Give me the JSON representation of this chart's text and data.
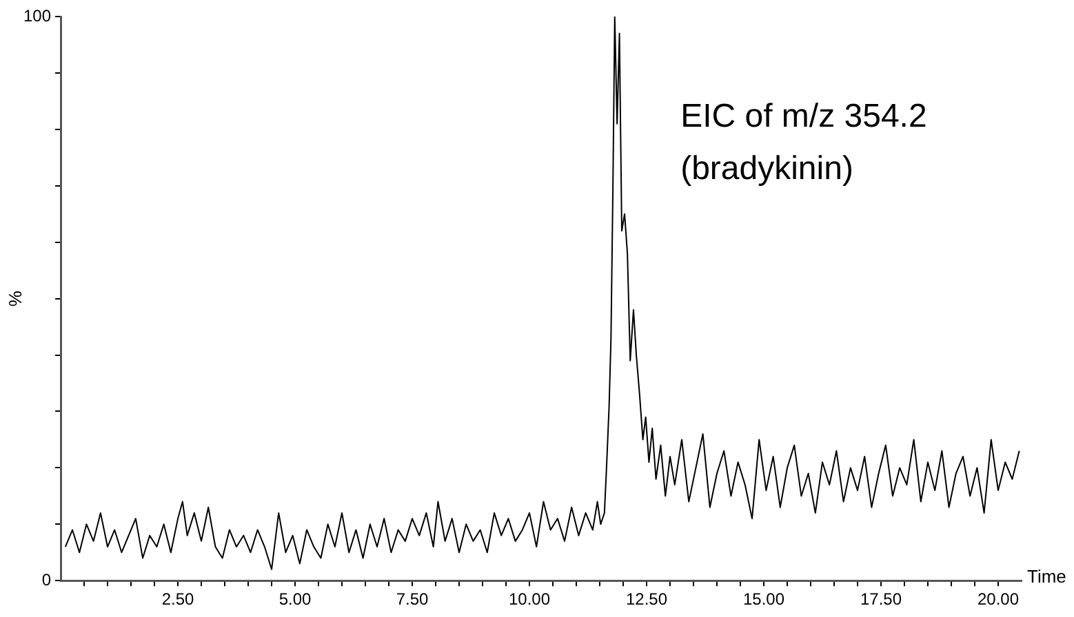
{
  "chart_data": {
    "type": "line",
    "xlabel": "Time",
    "ylabel": "%",
    "annotations": [
      "EIC of m/z 354.2",
      "(bradykinin)"
    ],
    "xlim": [
      0,
      20.5
    ],
    "ylim": [
      0,
      100
    ],
    "xticks": [
      {
        "value": 0.5,
        "label": null
      },
      {
        "value": 1,
        "label": null
      },
      {
        "value": 1.5,
        "label": null
      },
      {
        "value": 2,
        "label": null
      },
      {
        "value": 2.5,
        "label": "2.50"
      },
      {
        "value": 3,
        "label": null
      },
      {
        "value": 3.5,
        "label": null
      },
      {
        "value": 4,
        "label": null
      },
      {
        "value": 4.5,
        "label": null
      },
      {
        "value": 5,
        "label": "5.00"
      },
      {
        "value": 5.5,
        "label": null
      },
      {
        "value": 6,
        "label": null
      },
      {
        "value": 6.5,
        "label": null
      },
      {
        "value": 7,
        "label": null
      },
      {
        "value": 7.5,
        "label": "7.50"
      },
      {
        "value": 8,
        "label": null
      },
      {
        "value": 8.5,
        "label": null
      },
      {
        "value": 9,
        "label": null
      },
      {
        "value": 9.5,
        "label": null
      },
      {
        "value": 10,
        "label": "10.00"
      },
      {
        "value": 10.5,
        "label": null
      },
      {
        "value": 11,
        "label": null
      },
      {
        "value": 11.5,
        "label": null
      },
      {
        "value": 12,
        "label": null
      },
      {
        "value": 12.5,
        "label": "12.50"
      },
      {
        "value": 13,
        "label": null
      },
      {
        "value": 13.5,
        "label": null
      },
      {
        "value": 14,
        "label": null
      },
      {
        "value": 14.5,
        "label": null
      },
      {
        "value": 15,
        "label": "15.00"
      },
      {
        "value": 15.5,
        "label": null
      },
      {
        "value": 16,
        "label": null
      },
      {
        "value": 16.5,
        "label": null
      },
      {
        "value": 17,
        "label": null
      },
      {
        "value": 17.5,
        "label": "17.50"
      },
      {
        "value": 18,
        "label": null
      },
      {
        "value": 18.5,
        "label": null
      },
      {
        "value": 19,
        "label": null
      },
      {
        "value": 19.5,
        "label": null
      },
      {
        "value": 20,
        "label": "20.00"
      }
    ],
    "yticks": [
      0,
      {
        "value": 10,
        "label": null
      },
      {
        "value": 20,
        "label": null
      },
      {
        "value": 30,
        "label": null
      },
      {
        "value": 40,
        "label": null
      },
      {
        "value": 50,
        "label": null
      },
      {
        "value": 60,
        "label": null
      },
      {
        "value": 70,
        "label": null
      },
      {
        "value": 80,
        "label": null
      },
      {
        "value": 90,
        "label": null
      },
      100
    ],
    "grid": false,
    "legend": false,
    "marker": "none",
    "line_style": "solid",
    "series": [
      {
        "color": "#000000",
        "x": [
          0.1,
          0.25,
          0.4,
          0.55,
          0.7,
          0.85,
          1.0,
          1.15,
          1.3,
          1.45,
          1.6,
          1.75,
          1.9,
          2.05,
          2.2,
          2.35,
          2.5,
          2.6,
          2.7,
          2.85,
          3.0,
          3.15,
          3.3,
          3.45,
          3.6,
          3.75,
          3.9,
          4.05,
          4.2,
          4.35,
          4.5,
          4.65,
          4.8,
          4.95,
          5.1,
          5.25,
          5.4,
          5.55,
          5.7,
          5.85,
          6.0,
          6.15,
          6.3,
          6.45,
          6.6,
          6.75,
          6.9,
          7.05,
          7.2,
          7.35,
          7.5,
          7.65,
          7.8,
          7.95,
          8.05,
          8.2,
          8.35,
          8.5,
          8.65,
          8.8,
          8.95,
          9.1,
          9.25,
          9.4,
          9.55,
          9.7,
          9.85,
          10.0,
          10.15,
          10.3,
          10.45,
          10.6,
          10.75,
          10.9,
          11.05,
          11.2,
          11.35,
          11.45,
          11.52,
          11.6,
          11.65,
          11.7,
          11.74,
          11.78,
          11.82,
          11.87,
          11.92,
          11.97,
          12.03,
          12.09,
          12.15,
          12.22,
          12.28,
          12.35,
          12.42,
          12.48,
          12.55,
          12.62,
          12.7,
          12.8,
          12.9,
          13.0,
          13.1,
          13.25,
          13.4,
          13.55,
          13.7,
          13.85,
          14.0,
          14.15,
          14.3,
          14.45,
          14.6,
          14.75,
          14.9,
          15.05,
          15.2,
          15.35,
          15.5,
          15.65,
          15.8,
          15.95,
          16.1,
          16.25,
          16.4,
          16.55,
          16.7,
          16.85,
          17.0,
          17.15,
          17.3,
          17.45,
          17.6,
          17.75,
          17.9,
          18.05,
          18.2,
          18.35,
          18.5,
          18.65,
          18.8,
          18.95,
          19.1,
          19.25,
          19.4,
          19.55,
          19.7,
          19.85,
          20.0,
          20.15,
          20.3,
          20.45
        ],
        "values": [
          6,
          9,
          5,
          10,
          7,
          12,
          6,
          9,
          5,
          8,
          11,
          4,
          8,
          6,
          10,
          5,
          11,
          14,
          8,
          12,
          7,
          13,
          6,
          4,
          9,
          6,
          8,
          5,
          9,
          6,
          2,
          12,
          5,
          8,
          3,
          9,
          6,
          4,
          10,
          6,
          12,
          5,
          9,
          4,
          10,
          6,
          11,
          5,
          9,
          7,
          11,
          8,
          12,
          6,
          14,
          7,
          11,
          5,
          10,
          7,
          9,
          5,
          12,
          8,
          11,
          7,
          9,
          12,
          6,
          14,
          9,
          11,
          7,
          13,
          8,
          12,
          9,
          14,
          10,
          12,
          21,
          31,
          43,
          69,
          100,
          81,
          97,
          62,
          65,
          58,
          39,
          48,
          40,
          33,
          25,
          29,
          21,
          27,
          18,
          24,
          15,
          22,
          17,
          25,
          14,
          20,
          26,
          13,
          19,
          23,
          15,
          21,
          17,
          11,
          25,
          16,
          22,
          13,
          20,
          24,
          15,
          19,
          12,
          21,
          17,
          23,
          14,
          20,
          16,
          22,
          13,
          19,
          24,
          15,
          20,
          17,
          25,
          14,
          21,
          16,
          23,
          13,
          19,
          22,
          15,
          20,
          12,
          25,
          16,
          21,
          18,
          23
        ]
      }
    ]
  }
}
